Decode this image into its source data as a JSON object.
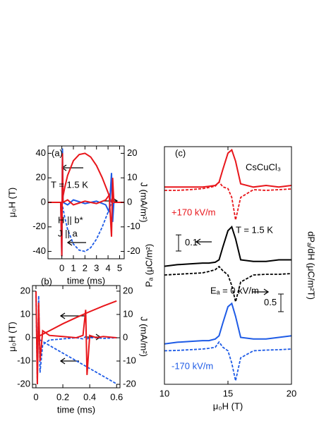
{
  "chart_data": [
    {
      "type": "line",
      "ylabel": "μ₀H (T)",
      "y2label": "J (mA/m²)",
      "xlabel": "time (ms)",
      "xlim": [
        -1.2,
        5.4
      ],
      "ylim": [
        -46,
        46
      ],
      "y2lim": [
        -23,
        23
      ],
      "xticks": [
        0,
        1,
        2,
        3,
        4,
        5
      ],
      "yticks": [
        -40,
        -20,
        0,
        20,
        40
      ],
      "y2ticks": [
        -20,
        -10,
        0,
        10,
        20
      ],
      "annotations": [
        "(a)",
        "T = 1.5 K",
        "H || b*",
        "J || a"
      ],
      "series": [
        {
          "color": "#e8161b",
          "dash": false,
          "axis": "y",
          "x": [
            0,
            0.25,
            0.5,
            1,
            1.5,
            2,
            2.5,
            3,
            3.5,
            4,
            4.3
          ],
          "values": [
            0,
            12,
            22,
            34,
            39,
            40,
            37,
            30,
            20,
            8,
            0
          ]
        },
        {
          "color": "#1e5be6",
          "dash": true,
          "axis": "y",
          "x": [
            0,
            0.25,
            0.5,
            1,
            1.5,
            2,
            2.5,
            3,
            3.5,
            4,
            4.3
          ],
          "values": [
            0,
            -12,
            -22,
            -34,
            -39,
            -40,
            -37,
            -30,
            -20,
            -8,
            0
          ]
        },
        {
          "color": "#1e5be6",
          "dash": false,
          "axis": "y2",
          "x": [
            -1.2,
            -0.1,
            0,
            0.05,
            0.1,
            0.5,
            1,
            2,
            3,
            3.8,
            4.1,
            4.3,
            4.4,
            4.5,
            5.4
          ],
          "values": [
            0,
            0,
            -22,
            22,
            0,
            -1,
            1,
            -0.5,
            0.5,
            -1,
            -4,
            12,
            -8,
            0,
            0
          ]
        },
        {
          "color": "#e8161b",
          "dash": false,
          "axis": "y2",
          "x": [
            -1.2,
            -0.1,
            0,
            0.05,
            0.1,
            0.5,
            1,
            2,
            3,
            3.8,
            4.1,
            4.3,
            4.4,
            4.5,
            5.4
          ],
          "values": [
            0,
            0,
            -22,
            20,
            0,
            1,
            -1,
            0.5,
            -0.5,
            1,
            3,
            -14,
            10,
            0,
            0
          ]
        }
      ]
    },
    {
      "type": "line",
      "ylabel": "μ₀H (T)",
      "y2label": "J (mA/m²)",
      "xlabel": "time (ms)",
      "xlim": [
        -0.026,
        0.625
      ],
      "ylim": [
        -21.5,
        22.4
      ],
      "y2lim": [
        -21.5,
        22.4
      ],
      "xticks": [
        0,
        0.2,
        0.4,
        0.6
      ],
      "yticks": [
        -20,
        -10,
        0,
        10,
        20
      ],
      "y2ticks": [
        -20,
        -10,
        0,
        10,
        20
      ],
      "annotations": [
        "(b)"
      ],
      "series": [
        {
          "color": "#e8161b",
          "dash": false,
          "axis": "y",
          "x": [
            0,
            0.05,
            0.1,
            0.2,
            0.3,
            0.4,
            0.5,
            0.6
          ],
          "values": [
            0,
            1.5,
            3,
            6,
            8.7,
            11.2,
            13.6,
            15.8
          ]
        },
        {
          "color": "#1e5be6",
          "dash": true,
          "axis": "y",
          "x": [
            0,
            0.05,
            0.1,
            0.2,
            0.3,
            0.4,
            0.5,
            0.6
          ],
          "values": [
            0,
            -1.6,
            -3.3,
            -6.6,
            -9.9,
            -13.2,
            -16.5,
            -19.8
          ]
        },
        {
          "color": "#1e5be6",
          "dash": true,
          "axis": "y2",
          "x": [
            0,
            0.01,
            0.02,
            0.03,
            0.05,
            0.1,
            0.2,
            0.3,
            0.35,
            0.37,
            0.38,
            0.4,
            0.45,
            0.5,
            0.6
          ],
          "values": [
            20,
            -20,
            18,
            -15,
            -3,
            -1,
            -0.5,
            0,
            -0.5,
            0.5,
            -0.5,
            0,
            0,
            -0.3,
            0
          ]
        },
        {
          "color": "#e8161b",
          "dash": false,
          "axis": "y2",
          "x": [
            0,
            0.01,
            0.02,
            0.03,
            0.05,
            0.1,
            0.2,
            0.3,
            0.35,
            0.37,
            0.38,
            0.4,
            0.45,
            0.5,
            0.6
          ],
          "values": [
            20,
            -20,
            15,
            -10,
            3,
            1,
            0.5,
            0,
            1,
            12,
            -16,
            1,
            0,
            0.5,
            0
          ]
        }
      ]
    },
    {
      "type": "line",
      "ylabel": "Pₐ (μC/m²)",
      "y2label": "dPₐ/dH (μC/m²T)",
      "xlabel": "μ₀H (T)",
      "xlim": [
        10,
        20
      ],
      "ylim": [
        0,
        1.47
      ],
      "y2lim": [
        0,
        6.74
      ],
      "xticks": [
        10,
        15,
        20
      ],
      "annotations": [
        "(c)",
        "CsCuCl₃",
        "+170 kV/m",
        "T = 1.5 K",
        "Eₐ = 0 kV/m",
        "-170 kV/m"
      ],
      "scale_bars": [
        {
          "value": 0.1,
          "label": "0.1",
          "axis": "y"
        },
        {
          "value": 0.5,
          "label": "0.5",
          "axis": "y2"
        }
      ],
      "series": [
        {
          "color": "#e8161b",
          "dash": false,
          "axis": "y",
          "x": [
            10,
            11,
            12,
            13,
            13.5,
            14,
            14.3,
            14.6,
            15,
            15.3,
            15.6,
            16,
            17,
            18,
            19,
            20
          ],
          "values": [
            1.22,
            1.22,
            1.22,
            1.22,
            1.225,
            1.23,
            1.25,
            1.33,
            1.43,
            1.45,
            1.38,
            1.24,
            1.22,
            1.23,
            1.22,
            1.23
          ]
        },
        {
          "color": "#e8161b",
          "dash": true,
          "axis": "y2",
          "x": [
            10,
            11,
            12,
            13,
            13.5,
            14,
            14.3,
            14.6,
            15,
            15.3,
            15.6,
            16,
            17,
            18,
            19,
            20
          ],
          "values": [
            5.5,
            5.5,
            5.52,
            5.55,
            5.58,
            5.62,
            5.74,
            5.6,
            5.55,
            5.3,
            4.66,
            5.3,
            5.52,
            5.5,
            5.52,
            5.54
          ]
        },
        {
          "color": "#000000",
          "dash": false,
          "axis": "y",
          "x": [
            10,
            11,
            12,
            13,
            13.5,
            14,
            14.3,
            14.6,
            15,
            15.3,
            15.6,
            16,
            17,
            18,
            19,
            20
          ],
          "values": [
            0.73,
            0.74,
            0.745,
            0.75,
            0.75,
            0.755,
            0.77,
            0.85,
            0.95,
            0.974,
            0.9,
            0.77,
            0.76,
            0.76,
            0.77,
            0.77
          ]
        },
        {
          "color": "#000000",
          "dash": true,
          "axis": "y2",
          "x": [
            10,
            11,
            12,
            13,
            13.5,
            14,
            14.3,
            14.6,
            15,
            15.3,
            15.6,
            16,
            17,
            18,
            19,
            20
          ],
          "values": [
            3.1,
            3.12,
            3.14,
            3.16,
            3.2,
            3.25,
            3.34,
            3.22,
            3.1,
            2.8,
            2.34,
            2.9,
            3.1,
            3.12,
            3.12,
            3.14
          ]
        },
        {
          "color": "#1e5be6",
          "dash": false,
          "axis": "y",
          "x": [
            10,
            11,
            12,
            13,
            13.5,
            14,
            14.3,
            14.6,
            15,
            15.3,
            15.6,
            16,
            17,
            18,
            19,
            20
          ],
          "values": [
            0.25,
            0.26,
            0.265,
            0.27,
            0.27,
            0.28,
            0.3,
            0.38,
            0.48,
            0.5,
            0.42,
            0.29,
            0.28,
            0.28,
            0.29,
            0.3
          ]
        },
        {
          "color": "#1e5be6",
          "dash": true,
          "axis": "y2",
          "x": [
            10,
            11,
            12,
            13,
            13.5,
            14,
            14.3,
            14.6,
            15,
            15.3,
            15.6,
            16,
            17,
            18,
            19,
            20
          ],
          "values": [
            0.95,
            0.96,
            0.98,
            1.0,
            1.02,
            1.05,
            1.2,
            1.05,
            0.95,
            0.6,
            0.1,
            0.75,
            0.95,
            0.97,
            0.98,
            1.0
          ]
        }
      ]
    }
  ]
}
